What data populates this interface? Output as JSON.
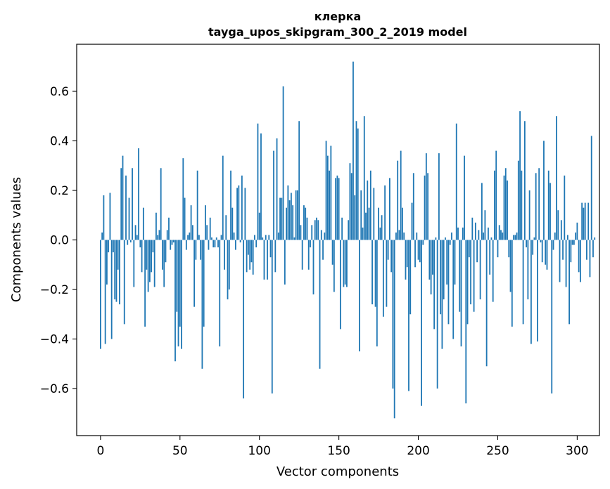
{
  "chart_data": {
    "type": "bar",
    "title_line1": "клерка",
    "title_line2": "tayga_upos_skipgram_300_2_2019 model",
    "xlabel": "Vector components",
    "ylabel": "Components values",
    "xlim": [
      -15,
      314
    ],
    "ylim": [
      -0.79,
      0.79
    ],
    "xticks": [
      0,
      50,
      100,
      150,
      200,
      250,
      300
    ],
    "yticks": [
      -0.6,
      -0.4,
      -0.2,
      0.0,
      0.2,
      0.4,
      0.6
    ],
    "bar_color": "#1f77b4",
    "values": [
      -0.44,
      0.03,
      0.18,
      -0.42,
      -0.18,
      -0.05,
      0.19,
      -0.4,
      -0.05,
      -0.24,
      -0.25,
      -0.12,
      -0.26,
      0.29,
      0.34,
      -0.34,
      0.26,
      -0.02,
      0.17,
      -0.01,
      0.29,
      -0.19,
      0.06,
      0.02,
      0.37,
      -0.03,
      -0.13,
      0.13,
      -0.35,
      -0.12,
      -0.21,
      -0.17,
      -0.13,
      -0.05,
      -0.19,
      0.11,
      0.02,
      0.04,
      0.29,
      -0.12,
      -0.19,
      -0.09,
      0.04,
      0.09,
      -0.04,
      -0.02,
      -0.01,
      -0.49,
      -0.29,
      -0.43,
      -0.35,
      -0.44,
      0.33,
      0.17,
      -0.04,
      0.02,
      0.03,
      0.14,
      0.06,
      -0.27,
      -0.08,
      0.28,
      0.02,
      -0.08,
      -0.52,
      -0.35,
      0.14,
      0.06,
      -0.04,
      0.09,
      0.01,
      -0.03,
      -0.03,
      0.01,
      -0.03,
      -0.43,
      0.02,
      0.34,
      -0.12,
      0.1,
      -0.24,
      -0.2,
      0.28,
      0.13,
      0.03,
      -0.04,
      0.21,
      0.22,
      -0.01,
      0.26,
      -0.64,
      0.21,
      -0.13,
      -0.06,
      -0.12,
      -0.09,
      -0.14,
      0.02,
      -0.03,
      0.47,
      0.11,
      0.43,
      0.01,
      -0.16,
      0.02,
      -0.16,
      0.02,
      -0.07,
      -0.62,
      0.36,
      -0.13,
      0.41,
      0.03,
      0.17,
      0.17,
      0.62,
      -0.18,
      0.13,
      0.22,
      0.16,
      0.19,
      0.14,
      0.01,
      0.2,
      0.2,
      0.48,
      0.06,
      -0.12,
      0.14,
      0.13,
      0.09,
      -0.12,
      -0.03,
      0.06,
      -0.22,
      0.08,
      0.09,
      0.08,
      -0.52,
      0.04,
      -0.08,
      0.03,
      0.4,
      0.34,
      0.28,
      0.38,
      -0.1,
      -0.21,
      0.25,
      0.26,
      0.25,
      -0.36,
      0.09,
      -0.19,
      -0.18,
      -0.19,
      0.08,
      0.31,
      0.27,
      0.72,
      0.18,
      0.48,
      0.45,
      -0.45,
      0.2,
      0.05,
      0.5,
      0.11,
      0.24,
      0.13,
      0.28,
      -0.26,
      0.21,
      -0.27,
      -0.43,
      0.13,
      0.05,
      0.1,
      -0.31,
      0.22,
      -0.27,
      -0.08,
      0.25,
      -0.13,
      -0.6,
      -0.72,
      0.03,
      0.32,
      0.04,
      0.36,
      0.13,
      0.03,
      -0.16,
      -0.11,
      -0.61,
      -0.3,
      0.15,
      0.27,
      -0.11,
      0.03,
      -0.08,
      -0.09,
      -0.67,
      -0.02,
      0.26,
      0.35,
      0.27,
      -0.16,
      -0.22,
      -0.14,
      -0.36,
      0.01,
      -0.6,
      0.35,
      -0.3,
      -0.44,
      -0.24,
      0.01,
      -0.18,
      -0.34,
      -0.02,
      0.03,
      -0.4,
      -0.18,
      0.47,
      0.05,
      -0.29,
      -0.43,
      0.05,
      0.34,
      -0.66,
      -0.34,
      -0.07,
      -0.26,
      0.09,
      -0.29,
      0.07,
      -0.09,
      0.04,
      -0.24,
      0.23,
      0.03,
      0.12,
      -0.51,
      0.05,
      -0.14,
      0.01,
      -0.25,
      0.28,
      0.36,
      -0.07,
      0.06,
      0.04,
      0.03,
      0.26,
      0.29,
      0.24,
      -0.07,
      -0.21,
      -0.35,
      0.02,
      0.02,
      0.03,
      0.32,
      0.52,
      0.28,
      -0.34,
      0.48,
      -0.03,
      -0.24,
      0.2,
      -0.42,
      -0.06,
      0.01,
      0.27,
      -0.41,
      0.29,
      -0.01,
      -0.09,
      0.4,
      -0.1,
      -0.12,
      0.28,
      0.23,
      -0.62,
      -0.04,
      0.03,
      0.5,
      0.12,
      -0.17,
      0.08,
      -0.08,
      0.26,
      -0.19,
      0.02,
      -0.34,
      -0.09,
      -0.02,
      -0.02,
      0.03,
      0.07,
      -0.13,
      -0.17,
      0.15,
      0.13,
      0.15,
      -0.08,
      0.15,
      -0.15,
      0.42,
      -0.07,
      0.01
    ]
  }
}
